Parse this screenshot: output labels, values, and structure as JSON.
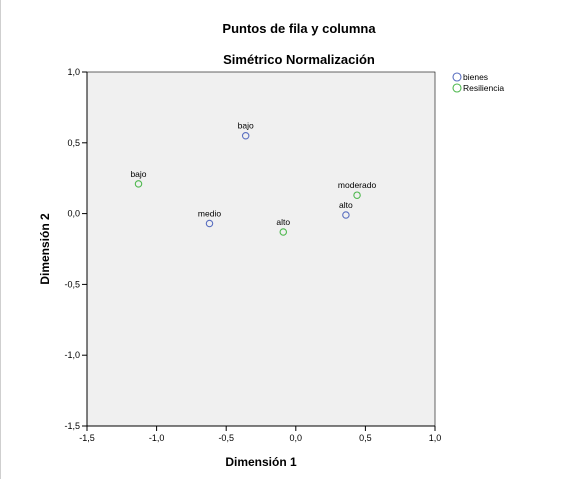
{
  "chart_data": {
    "type": "scatter",
    "title": "Puntos de fila y columna",
    "subtitle": "Simétrico Normalización",
    "xlabel": "Dimensión 1",
    "ylabel": "Dimensión 2",
    "xlim": [
      -1.5,
      1.0
    ],
    "ylim": [
      -1.5,
      1.0
    ],
    "xticks": [
      -1.5,
      -1.0,
      -0.5,
      0.0,
      0.5,
      1.0
    ],
    "yticks": [
      -1.5,
      -1.0,
      -0.5,
      0.0,
      0.5,
      1.0
    ],
    "xtick_labels": [
      "-1,5",
      "-1,0",
      "-0,5",
      "0,0",
      "0,5",
      "1,0"
    ],
    "ytick_labels": [
      "-1,5",
      "-1,0",
      "-0,5",
      "0,0",
      "0,5",
      "1,0"
    ],
    "grid": false,
    "legend_position": "top-right",
    "series": [
      {
        "name": "bienes",
        "color": "#5a6fc0",
        "points": [
          {
            "label": "bajo",
            "x": -0.36,
            "y": 0.55
          },
          {
            "label": "medio",
            "x": -0.62,
            "y": -0.07
          },
          {
            "label": "alto",
            "x": 0.36,
            "y": -0.01
          }
        ]
      },
      {
        "name": "Resiliencia",
        "color": "#4fb84f",
        "points": [
          {
            "label": "bajo",
            "x": -1.13,
            "y": 0.21
          },
          {
            "label": "alto",
            "x": -0.09,
            "y": -0.13
          },
          {
            "label": "moderado",
            "x": 0.44,
            "y": 0.13
          }
        ]
      }
    ]
  }
}
